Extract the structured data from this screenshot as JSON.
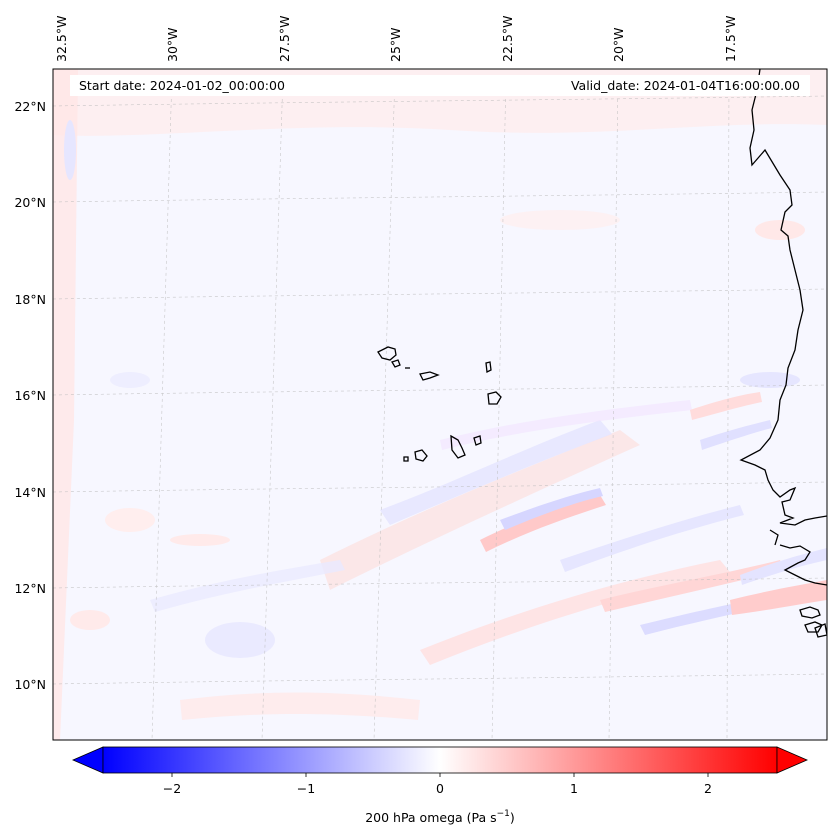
{
  "header": {
    "start_date": "Start date: 2024-01-02_00:00:00",
    "valid_date": "Valid_date: 2024-01-04T16:00:00.00"
  },
  "longitude_labels": [
    "32.5°W",
    "30°W",
    "27.5°W",
    "25°W",
    "22.5°W",
    "20°W",
    "17.5°W"
  ],
  "latitude_labels": [
    "22°N",
    "20°N",
    "18°N",
    "16°N",
    "14°N",
    "12°N",
    "10°N"
  ],
  "colorbar": {
    "ticks": [
      "−2",
      "−1",
      "0",
      "1",
      "2"
    ],
    "label_prefix": "200 hPa omega (Pa s",
    "label_exp": "−1",
    "label_suffix": ")",
    "low_color": "#0000ff",
    "mid_color": "#ffffff",
    "high_color": "#ff0000"
  },
  "map": {
    "background": "#f7f7ff",
    "coastline_color": "#000000",
    "gridline_color": "#bbbbbb"
  }
}
